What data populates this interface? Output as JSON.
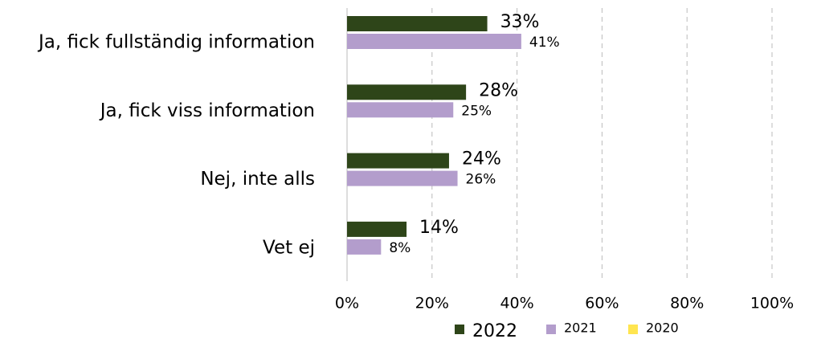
{
  "chart_data": {
    "type": "hbar",
    "categories": [
      "Ja, fick fullständig information",
      "Ja, fick viss information",
      "Nej, inte alls",
      "Vet ej"
    ],
    "series": [
      {
        "name": "2022",
        "color": "#2e4519",
        "values": [
          33,
          28,
          24,
          14
        ],
        "value_labels": [
          "33%",
          "28%",
          "24%",
          "14%"
        ]
      },
      {
        "name": "2021",
        "color": "#b39dcc",
        "values": [
          41,
          25,
          26,
          8
        ],
        "value_labels": [
          "41%",
          "25%",
          "26%",
          "8%"
        ]
      },
      {
        "name": "2020",
        "color": "#ffe550",
        "values": [
          null,
          null,
          null,
          null
        ]
      }
    ],
    "xlim": [
      0,
      100
    ],
    "xticks": [
      {
        "value": 0,
        "label": "0%"
      },
      {
        "value": 20,
        "label": "20%"
      },
      {
        "value": 40,
        "label": "40%"
      },
      {
        "value": 60,
        "label": "60%"
      },
      {
        "value": 80,
        "label": "80%"
      },
      {
        "value": 100,
        "label": "100%"
      }
    ],
    "grid": true,
    "legend": "bottom"
  }
}
